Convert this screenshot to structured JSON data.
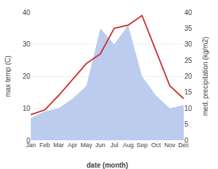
{
  "chart_data": {
    "type": "line",
    "xlabel": "date (month)",
    "ylabel": "max temp (C)",
    "y2label": "med. precipitation (kg/m2)",
    "categories": [
      "Jan",
      "Feb",
      "Mar",
      "Apr",
      "May",
      "Jun",
      "Jul",
      "Aug",
      "Sep",
      "Oct",
      "Nov",
      "Dec"
    ],
    "series": [
      {
        "type": "area",
        "color": "#bbccee",
        "axis": "y2",
        "values": [
          7,
          9,
          10,
          13,
          17,
          35,
          30,
          36,
          20,
          14,
          10,
          11
        ]
      },
      {
        "type": "line",
        "color": "#cc3333",
        "values": [
          8,
          9.5,
          14,
          19,
          24,
          27,
          35,
          36,
          39,
          28,
          17,
          13
        ]
      }
    ],
    "ylim": [
      0,
      40
    ],
    "yticks": [
      0,
      10,
      20,
      30,
      40
    ],
    "y2lim": [
      0,
      40
    ],
    "y2ticks": [
      0,
      5,
      10,
      15,
      20,
      25,
      30,
      35,
      40
    ],
    "grid": true
  }
}
